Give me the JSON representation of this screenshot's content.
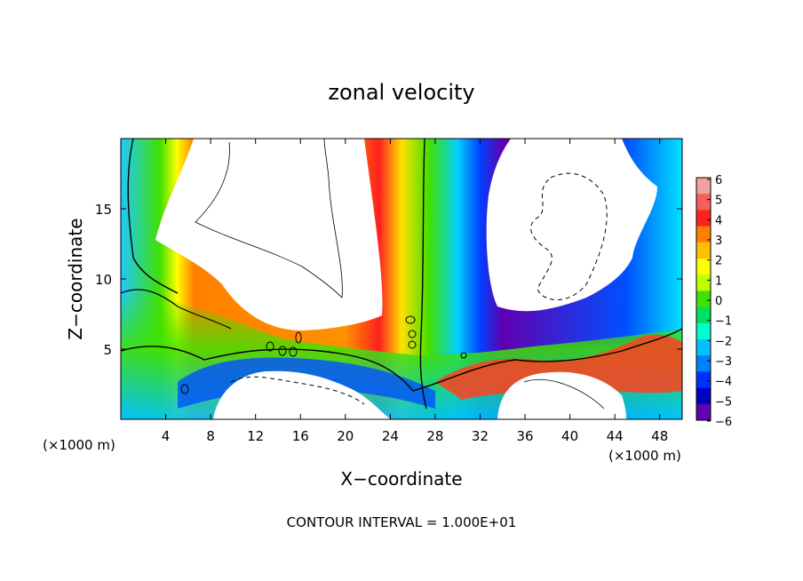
{
  "chart_data": {
    "type": "heatmap",
    "title": "zonal velocity",
    "xlabel": "X−coordinate",
    "ylabel": "Z−coordinate",
    "x_units_left": "(×1000 m)",
    "x_units_right": "(×1000 m)",
    "footer": "CONTOUR INTERVAL = 1.000E+01",
    "xlim": [
      0,
      50
    ],
    "ylim": [
      0,
      20
    ],
    "x_ticks": [
      "4",
      "8",
      "12",
      "16",
      "20",
      "24",
      "28",
      "32",
      "36",
      "40",
      "44",
      "48"
    ],
    "y_ticks": [
      "5",
      "10",
      "15"
    ],
    "colorbar": {
      "labels": [
        "6",
        "5",
        "4",
        "3",
        "2",
        "1",
        "0",
        "−1",
        "−2",
        "−3",
        "−4",
        "−5",
        "−6"
      ],
      "colors": [
        "#f4a0a0",
        "#f46060",
        "#ff2020",
        "#ff8000",
        "#ffc000",
        "#ffff00",
        "#c0ff00",
        "#40e000",
        "#00e060",
        "#00ffd0",
        "#00c0ff",
        "#0080ff",
        "#0030ff",
        "#0000c0",
        "#6000b0"
      ]
    },
    "grid": false
  }
}
